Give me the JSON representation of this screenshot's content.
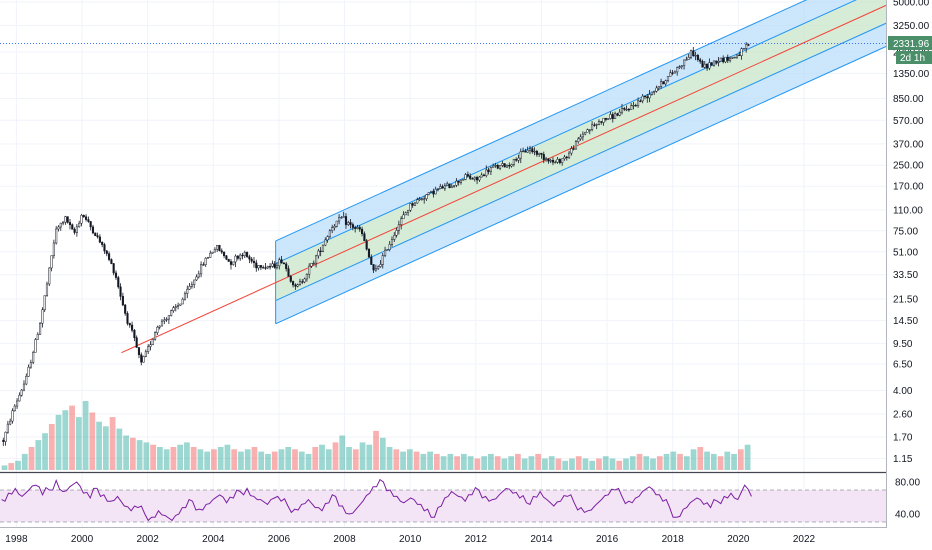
{
  "chart_data": [
    {
      "type": "candlestick",
      "scale": "log",
      "y_ticks": [
        "5000.00",
        "3250.00",
        "2000.00",
        "1350.00",
        "850.00",
        "570.00",
        "370.00",
        "250.00",
        "170.00",
        "110.00",
        "75.00",
        "51.00",
        "33.50",
        "21.50",
        "14.50",
        "9.50",
        "6.50",
        "4.00",
        "2.60",
        "1.70",
        "1.15"
      ],
      "x_ticks": [
        "1998",
        "2000",
        "2002",
        "2004",
        "2006",
        "2008",
        "2010",
        "2012",
        "2014",
        "2016",
        "2018",
        "2020",
        "2022"
      ],
      "ylim": [
        1.0,
        5000
      ],
      "xlim": [
        1997.5,
        2024.5
      ],
      "last_price": "2331.96",
      "last_price_value": 2331.96,
      "countdown": "2d 1h",
      "price_path": [
        [
          1997.6,
          1.6
        ],
        [
          1997.9,
          2.8
        ],
        [
          1998.3,
          5.0
        ],
        [
          1998.7,
          13.0
        ],
        [
          1998.95,
          30.0
        ],
        [
          1999.2,
          75.0
        ],
        [
          1999.5,
          95.0
        ],
        [
          1999.75,
          70.0
        ],
        [
          2000.0,
          103.0
        ],
        [
          2000.3,
          78.0
        ],
        [
          2000.7,
          52.0
        ],
        [
          2001.0,
          35.0
        ],
        [
          2001.3,
          17.0
        ],
        [
          2001.6,
          10.0
        ],
        [
          2001.8,
          6.5
        ],
        [
          2002.0,
          8.5
        ],
        [
          2002.3,
          13.0
        ],
        [
          2002.7,
          16.5
        ],
        [
          2003.0,
          20.0
        ],
        [
          2003.4,
          30.0
        ],
        [
          2003.8,
          46.0
        ],
        [
          2004.1,
          56.0
        ],
        [
          2004.5,
          42.0
        ],
        [
          2004.9,
          50.0
        ],
        [
          2005.3,
          40.0
        ],
        [
          2005.8,
          39.0
        ],
        [
          2006.1,
          44.0
        ],
        [
          2006.5,
          26.0
        ],
        [
          2006.7,
          30.0
        ],
        [
          2007.2,
          50.0
        ],
        [
          2007.6,
          80.0
        ],
        [
          2007.9,
          95.0
        ],
        [
          2008.2,
          82.0
        ],
        [
          2008.5,
          75.0
        ],
        [
          2008.9,
          34.0
        ],
        [
          2009.2,
          48.0
        ],
        [
          2009.6,
          80.0
        ],
        [
          2010.0,
          120.0
        ],
        [
          2010.4,
          140.0
        ],
        [
          2010.8,
          160.0
        ],
        [
          2011.3,
          175.0
        ],
        [
          2011.7,
          205.0
        ],
        [
          2012.0,
          190.0
        ],
        [
          2012.5,
          240.0
        ],
        [
          2013.0,
          250.0
        ],
        [
          2013.6,
          340.0
        ],
        [
          2014.0,
          300.0
        ],
        [
          2014.4,
          260.0
        ],
        [
          2014.8,
          300.0
        ],
        [
          2015.3,
          460.0
        ],
        [
          2015.8,
          560.0
        ],
        [
          2016.2,
          620.0
        ],
        [
          2016.7,
          720.0
        ],
        [
          2017.2,
          900.0
        ],
        [
          2017.7,
          1150.0
        ],
        [
          2018.1,
          1450.0
        ],
        [
          2018.6,
          2000.0
        ],
        [
          2018.95,
          1500.0
        ],
        [
          2019.4,
          1750.0
        ],
        [
          2019.8,
          1780.0
        ],
        [
          2020.1,
          2000.0
        ],
        [
          2020.35,
          2330.0
        ]
      ],
      "volume_heights": [
        4,
        6,
        8,
        14,
        20,
        26,
        32,
        40,
        48,
        52,
        56,
        46,
        60,
        50,
        42,
        38,
        46,
        36,
        30,
        28,
        26,
        24,
        22,
        20,
        18,
        20,
        22,
        24,
        20,
        18,
        16,
        18,
        20,
        22,
        18,
        16,
        18,
        20,
        16,
        14,
        16,
        18,
        20,
        18,
        16,
        14,
        20,
        22,
        18,
        24,
        30,
        20,
        18,
        24,
        22,
        34,
        28,
        20,
        18,
        16,
        18,
        16,
        14,
        16,
        14,
        12,
        14,
        12,
        14,
        12,
        10,
        12,
        14,
        12,
        10,
        12,
        14,
        10,
        12,
        14,
        10,
        12,
        10,
        8,
        10,
        12,
        10,
        8,
        10,
        12,
        10,
        8,
        10,
        12,
        14,
        12,
        10,
        12,
        14,
        16,
        14,
        12,
        18,
        20,
        16,
        14,
        12,
        16,
        14,
        18,
        22
      ],
      "volume_colors": [
        "#26a69a",
        "#ef5350"
      ],
      "channel": {
        "regression_start": [
          2001.2,
          8.0
        ],
        "regression_end": [
          2024.5,
          4700.0
        ],
        "channel_start_x": 2005.9,
        "upper_mult": 2.15,
        "mid_upper_mult": 1.42,
        "mid_lower_mult": 0.72,
        "lower_mult": 0.47,
        "line_color": "#2196f3",
        "regression_color": "#f44336",
        "outer_fill": "#bbdefb",
        "inner_fill": "#c8e6c9"
      },
      "colors": {
        "candle": "#131722",
        "price_tag": "#4a8f6a",
        "price_line": "#2962ff",
        "grid": "#f0f3fa",
        "axis_text": "#131722"
      }
    },
    {
      "type": "line",
      "indicator": "RSI",
      "y_ticks": [
        "80.00",
        "40.00"
      ],
      "ylim": [
        25,
        90
      ],
      "bands": [
        70,
        30
      ],
      "series": [
        {
          "values": [
            58,
            66,
            72,
            62,
            70,
            76,
            64,
            70,
            82,
            68,
            74,
            80,
            66,
            60,
            72,
            64,
            56,
            62,
            50,
            44,
            48,
            40,
            36,
            44,
            38,
            32,
            40,
            48,
            56,
            46,
            52,
            58,
            64,
            54,
            60,
            68,
            72,
            62,
            58,
            52,
            60,
            56,
            50,
            46,
            52,
            58,
            48,
            44,
            54,
            62,
            50,
            40,
            46,
            56,
            66,
            74,
            80,
            70,
            62,
            54,
            60,
            52,
            44,
            36,
            48,
            60,
            68,
            62,
            56,
            64,
            70,
            62,
            58,
            64,
            72,
            66,
            60,
            54,
            62,
            68,
            58,
            50,
            56,
            62,
            54,
            48,
            44,
            50,
            58,
            64,
            70,
            62,
            56,
            60,
            68,
            74,
            64,
            56,
            48,
            36,
            46,
            54,
            60,
            52,
            48,
            56,
            62,
            66,
            58,
            76,
            62
          ]
        }
      ],
      "colors": {
        "line": "#7b1fa2",
        "fill": "#f3e5f5",
        "band": "#9598a1"
      }
    }
  ]
}
